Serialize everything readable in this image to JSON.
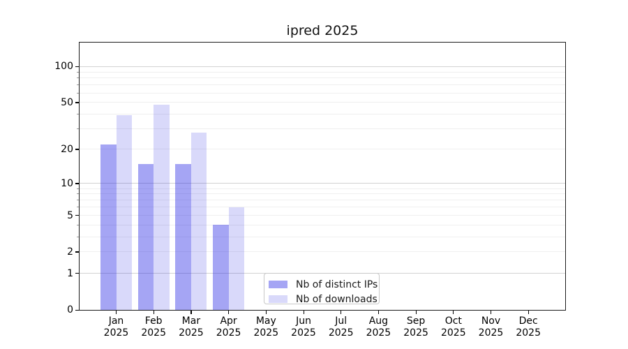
{
  "title": "ipred 2025",
  "chart_data": {
    "type": "bar",
    "title": "ipred 2025",
    "categories": [
      "Jan 2025",
      "Feb 2025",
      "Mar 2025",
      "Apr 2025",
      "May 2025",
      "Jun 2025",
      "Jul 2025",
      "Aug 2025",
      "Sep 2025",
      "Oct 2025",
      "Nov 2025",
      "Dec 2025"
    ],
    "months": [
      "Jan",
      "Feb",
      "Mar",
      "Apr",
      "May",
      "Jun",
      "Jul",
      "Aug",
      "Sep",
      "Oct",
      "Nov",
      "Dec"
    ],
    "year": "2025",
    "series": [
      {
        "name": "Nb of distinct IPs",
        "values": [
          22,
          15,
          15,
          4,
          0,
          0,
          0,
          0,
          0,
          0,
          0,
          0
        ]
      },
      {
        "name": "Nb of downloads",
        "values": [
          39,
          48,
          28,
          6,
          0,
          0,
          0,
          0,
          0,
          0,
          0,
          0
        ]
      }
    ],
    "yscale": "log1p",
    "ylim": [
      0,
      126
    ],
    "y_ticks": [
      100,
      50,
      20,
      10,
      5,
      2,
      1,
      0
    ],
    "y_decade_ticks": [
      100,
      10,
      1
    ],
    "y_minor_ticks": [
      90,
      80,
      70,
      60,
      40,
      30,
      9,
      8,
      7,
      6,
      4,
      3
    ],
    "grid": "horizontal",
    "legend_position": "lower-center",
    "xlabel": "",
    "ylabel": ""
  },
  "colors": {
    "distinct_ips_bar": "rgba(30,30,228,0.40)",
    "downloads_bar": "rgba(30,30,228,0.17)",
    "grid_major": "#d2d2d2",
    "grid_minor": "#efefef",
    "axis": "#1a1a1a"
  },
  "legend": {
    "items": [
      {
        "label": "Nb of distinct IPs"
      },
      {
        "label": "Nb of downloads"
      }
    ]
  }
}
